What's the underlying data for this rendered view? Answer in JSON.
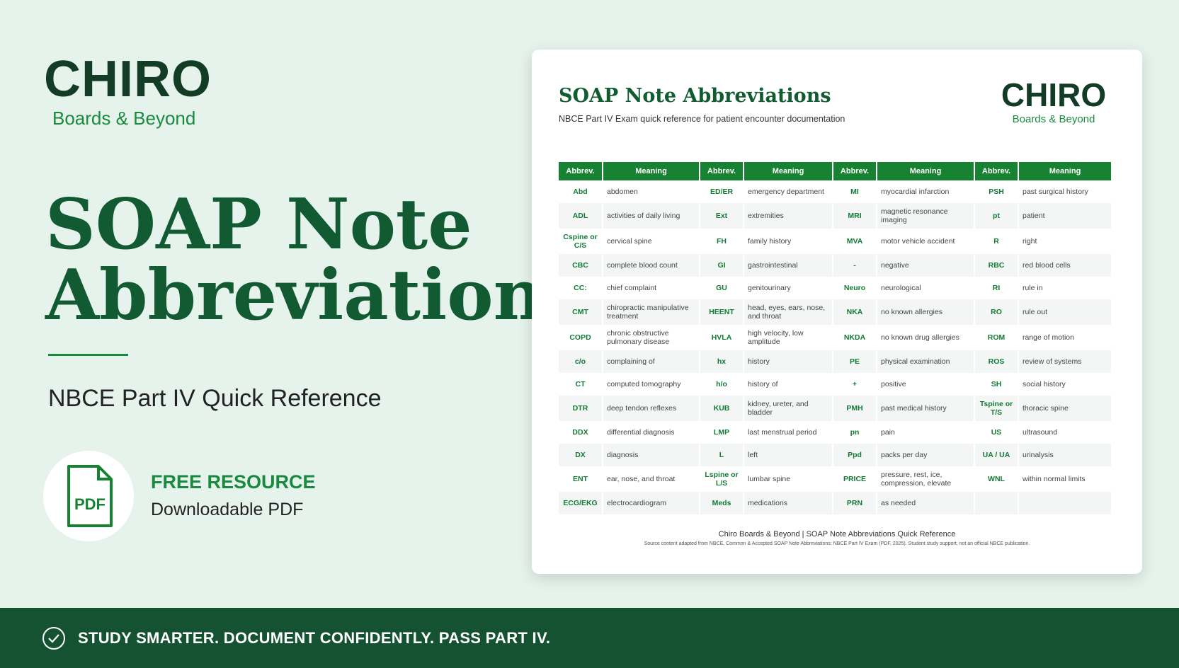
{
  "logo": {
    "wordmark": "CHIRO",
    "tagline": "Boards & Beyond"
  },
  "hero": {
    "title_lines": [
      "SOAP Note",
      "Abbreviations"
    ],
    "subtitle": "NBCE Part IV Quick Reference",
    "resource_label": "FREE RESOURCE",
    "resource_detail": "Downloadable PDF",
    "icon_label": "PDF"
  },
  "document": {
    "title": "SOAP Note Abbreviations",
    "subtitle": "NBCE Part IV Exam quick reference for patient encounter documentation",
    "table": {
      "header": [
        "Abbrev.",
        "Meaning"
      ],
      "groups": [
        [
          [
            "Abd",
            "abdomen"
          ],
          [
            "ADL",
            "activities of daily living"
          ],
          [
            "Cspine or C/S",
            "cervical spine"
          ],
          [
            "CBC",
            "complete blood count"
          ],
          [
            "CC:",
            "chief complaint"
          ],
          [
            "CMT",
            "chiropractic manipulative treatment"
          ],
          [
            "COPD",
            "chronic obstructive pulmonary disease"
          ],
          [
            "c/o",
            "complaining of"
          ],
          [
            "CT",
            "computed tomography"
          ],
          [
            "DTR",
            "deep tendon reflexes"
          ],
          [
            "DDX",
            "differential diagnosis"
          ],
          [
            "DX",
            "diagnosis"
          ],
          [
            "ENT",
            "ear, nose, and throat"
          ],
          [
            "ECG/EKG",
            "electrocardiogram"
          ]
        ],
        [
          [
            "ED/ER",
            "emergency department"
          ],
          [
            "Ext",
            "extremities"
          ],
          [
            "FH",
            "family history"
          ],
          [
            "GI",
            "gastrointestinal"
          ],
          [
            "GU",
            "genitourinary"
          ],
          [
            "HEENT",
            "head, eyes, ears, nose, and throat"
          ],
          [
            "HVLA",
            "high velocity, low amplitude"
          ],
          [
            "hx",
            "history"
          ],
          [
            "h/o",
            "history of"
          ],
          [
            "KUB",
            "kidney, ureter, and bladder"
          ],
          [
            "LMP",
            "last menstrual period"
          ],
          [
            "L",
            "left"
          ],
          [
            "Lspine or L/S",
            "lumbar spine"
          ],
          [
            "Meds",
            "medications"
          ]
        ],
        [
          [
            "MI",
            "myocardial infarction"
          ],
          [
            "MRI",
            "magnetic resonance imaging"
          ],
          [
            "MVA",
            "motor vehicle accident"
          ],
          [
            "-",
            "negative"
          ],
          [
            "Neuro",
            "neurological"
          ],
          [
            "NKA",
            "no known allergies"
          ],
          [
            "NKDA",
            "no known drug allergies"
          ],
          [
            "PE",
            "physical examination"
          ],
          [
            "+",
            "positive"
          ],
          [
            "PMH",
            "past medical history"
          ],
          [
            "pn",
            "pain"
          ],
          [
            "Ppd",
            "packs per day"
          ],
          [
            "PRICE",
            "pressure, rest, ice, compression, elevate"
          ],
          [
            "PRN",
            "as needed"
          ]
        ],
        [
          [
            "PSH",
            "past surgical history"
          ],
          [
            "pt",
            "patient"
          ],
          [
            "R",
            "right"
          ],
          [
            "RBC",
            "red blood cells"
          ],
          [
            "RI",
            "rule in"
          ],
          [
            "RO",
            "rule out"
          ],
          [
            "ROM",
            "range of motion"
          ],
          [
            "ROS",
            "review of systems"
          ],
          [
            "SH",
            "social history"
          ],
          [
            "Tspine or T/S",
            "thoracic spine"
          ],
          [
            "US",
            "ultrasound"
          ],
          [
            "UA / UA",
            "urinalysis"
          ],
          [
            "WNL",
            "within normal limits"
          ]
        ]
      ]
    },
    "footer": "Chiro Boards & Beyond | SOAP Note Abbreviations Quick Reference",
    "source": "Source content adapted from NBCE, Common & Accepted SOAP Note Abbreviations: NBCE Part IV Exam (PDF, 2025). Student study support, not an official NBCE publication."
  },
  "banner": {
    "text": "STUDY SMARTER. DOCUMENT CONFIDENTLY. PASS PART IV."
  }
}
